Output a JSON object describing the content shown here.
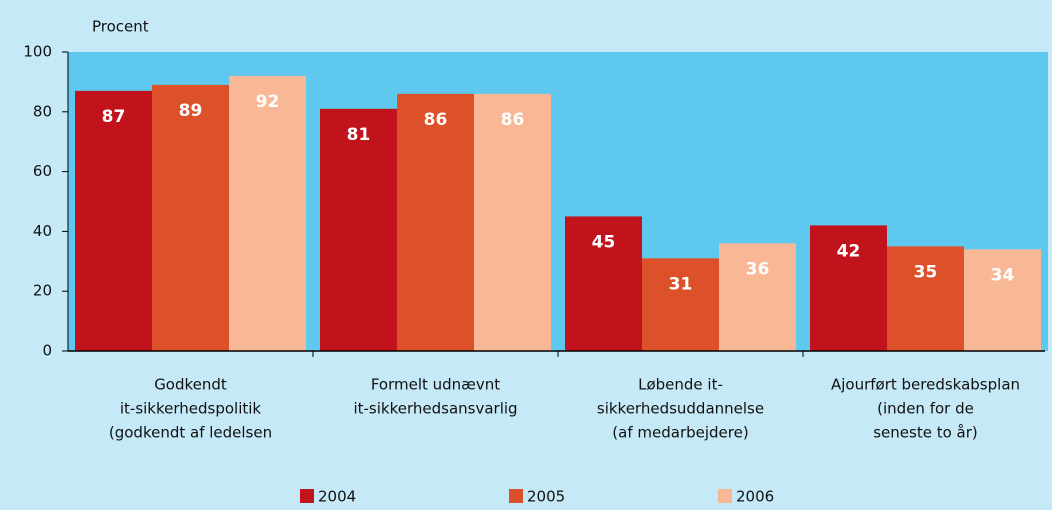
{
  "chart_data": {
    "type": "bar",
    "y_label": "Procent",
    "categories": [
      [
        "Godkendt",
        "it-sikkerhedspolitik",
        "(godkendt af ledelsen"
      ],
      [
        "Formelt udnævnt",
        "it-sikkerhedsansvarlig"
      ],
      [
        "Løbende it-",
        "sikkerhedsuddannelse",
        "(af medarbejdere)"
      ],
      [
        "Ajourført beredskabsplan",
        "(inden for de",
        "seneste to år)"
      ]
    ],
    "series": [
      {
        "name": "2004",
        "color": "#c1131c",
        "values": [
          87,
          81,
          45,
          42
        ]
      },
      {
        "name": "2005",
        "color": "#dc5129",
        "values": [
          89,
          86,
          31,
          35
        ]
      },
      {
        "name": "2006",
        "color": "#f8b896",
        "values": [
          92,
          86,
          36,
          34
        ]
      }
    ],
    "ylim": [
      0,
      100
    ],
    "yticks": [
      0,
      20,
      40,
      60,
      80,
      100
    ],
    "grid": false,
    "legend": "bottom"
  }
}
